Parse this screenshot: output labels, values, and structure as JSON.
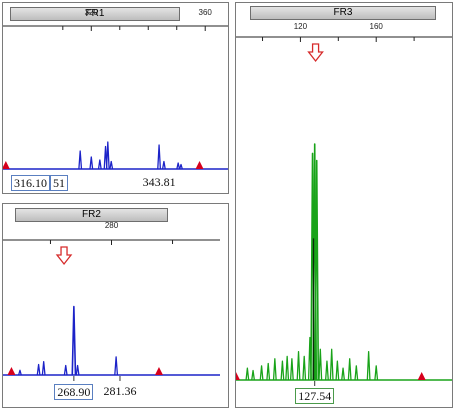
{
  "colors": {
    "fr1_trace": "#1c23c8",
    "fr2_trace": "#1c23c8",
    "fr3_trace": "#19a319",
    "marker": "#d6001c",
    "arrow": "#d62a2a",
    "box_blue": "#5a7fc0",
    "box_green": "#4a9a4a"
  },
  "chart_data": [
    {
      "id": "fr1",
      "type": "line",
      "title": "FR1",
      "xlim": [
        289,
        368
      ],
      "ylim": [
        0,
        100
      ],
      "tick_labels": [
        {
          "x": 320,
          "label": "320"
        },
        {
          "x": 360,
          "label": "360"
        }
      ],
      "minor_ticks": [
        310,
        330,
        340,
        350
      ],
      "peaks": [
        {
          "x": 316.1,
          "height": 12
        },
        {
          "x": 320.0,
          "height": 8
        },
        {
          "x": 323.0,
          "height": 6
        },
        {
          "x": 325.0,
          "height": 15
        },
        {
          "x": 325.8,
          "height": 18
        },
        {
          "x": 327.0,
          "height": 5
        },
        {
          "x": 343.8,
          "height": 16
        },
        {
          "x": 345.5,
          "height": 5
        },
        {
          "x": 350.5,
          "height": 4
        },
        {
          "x": 351.5,
          "height": 3
        }
      ],
      "markers": [
        290,
        358
      ],
      "size_labels": [
        {
          "text": "316.10",
          "x": 318,
          "boxed": true
        },
        {
          "text": "51",
          "x": 327,
          "boxed": true
        },
        {
          "text": "343.81",
          "x": 343.8,
          "boxed": false
        }
      ]
    },
    {
      "id": "fr2",
      "type": "line",
      "title": "FR2",
      "xlim": [
        248,
        312
      ],
      "ylim": [
        0,
        100
      ],
      "tick_labels": [
        {
          "x": 280,
          "label": "280"
        }
      ],
      "minor_ticks": [
        262,
        298
      ],
      "peaks": [
        {
          "x": 253.0,
          "height": 5
        },
        {
          "x": 258.5,
          "height": 11
        },
        {
          "x": 260.0,
          "height": 14
        },
        {
          "x": 266.5,
          "height": 10
        },
        {
          "x": 268.9,
          "height": 72
        },
        {
          "x": 270.0,
          "height": 10
        },
        {
          "x": 281.36,
          "height": 19
        }
      ],
      "markers": [
        250.5,
        294
      ],
      "arrow_x": 266,
      "size_labels": [
        {
          "text": "268.90",
          "x": 268.9,
          "boxed": true
        },
        {
          "text": "281.36",
          "x": 282.5,
          "boxed": false
        }
      ]
    },
    {
      "id": "fr3",
      "type": "line",
      "title": "FR3",
      "xlim": [
        86,
        200
      ],
      "ylim": [
        0,
        100
      ],
      "tick_labels": [
        {
          "x": 120,
          "label": "120"
        },
        {
          "x": 160,
          "label": "160"
        }
      ],
      "minor_ticks": [
        100,
        140,
        180
      ],
      "peaks": [
        {
          "x": 92.0,
          "height": 5
        },
        {
          "x": 95.0,
          "height": 4
        },
        {
          "x": 99.5,
          "height": 6
        },
        {
          "x": 103.0,
          "height": 7
        },
        {
          "x": 106.5,
          "height": 9
        },
        {
          "x": 110.5,
          "height": 8
        },
        {
          "x": 113.0,
          "height": 10
        },
        {
          "x": 115.5,
          "height": 9
        },
        {
          "x": 119.0,
          "height": 12
        },
        {
          "x": 122.0,
          "height": 10
        },
        {
          "x": 125.0,
          "height": 18
        },
        {
          "x": 126.4,
          "height": 96
        },
        {
          "x": 127.54,
          "height": 100
        },
        {
          "x": 128.6,
          "height": 93
        },
        {
          "x": 130.5,
          "height": 13
        },
        {
          "x": 134.0,
          "height": 8
        },
        {
          "x": 136.5,
          "height": 13
        },
        {
          "x": 139.5,
          "height": 8
        },
        {
          "x": 142.5,
          "height": 5
        },
        {
          "x": 146.0,
          "height": 9
        },
        {
          "x": 149.5,
          "height": 6
        },
        {
          "x": 156.0,
          "height": 12
        },
        {
          "x": 160.0,
          "height": 6
        }
      ],
      "markers": [
        86,
        184
      ],
      "arrow_x": 128,
      "size_labels": [
        {
          "text": "127.54",
          "x": 127.54,
          "boxed": true
        }
      ]
    }
  ]
}
